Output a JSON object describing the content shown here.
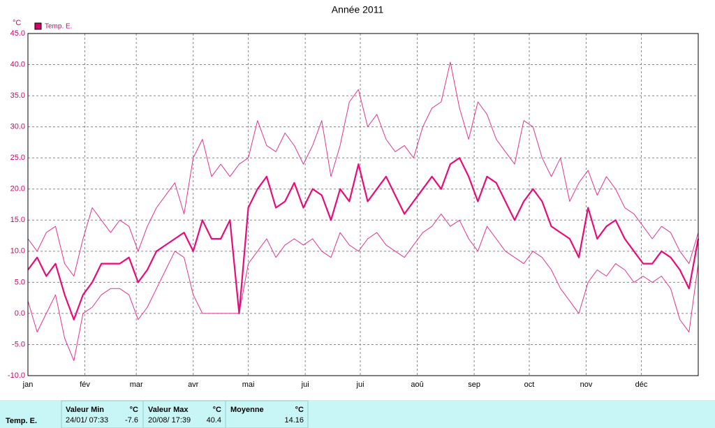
{
  "chart_data": {
    "type": "line",
    "title": "Année 2011",
    "y_unit": "°C",
    "legend": "Temp. E.",
    "legend_color": "#d4006a",
    "grid": true,
    "x": [
      0,
      5,
      10,
      15,
      20,
      25,
      30,
      35,
      40,
      45,
      50,
      55,
      60,
      65,
      70,
      75,
      80,
      85,
      90,
      95,
      100,
      105,
      110,
      115,
      120,
      125,
      130,
      135,
      140,
      145,
      150,
      155,
      160,
      165,
      170,
      175,
      180,
      185,
      190,
      195,
      200,
      205,
      210,
      215,
      220,
      225,
      230,
      235,
      240,
      245,
      250,
      255,
      260,
      265,
      270,
      275,
      280,
      285,
      290,
      295,
      300,
      305,
      310,
      315,
      320,
      325,
      330,
      335,
      340,
      345,
      350,
      355,
      360,
      365
    ],
    "series": [
      {
        "name": "Temp. E.",
        "color": "#ea0a78",
        "width": 2.2,
        "values": [
          7,
          9,
          6,
          8,
          3,
          -1,
          3,
          5,
          8,
          8,
          8,
          9,
          5,
          7,
          10,
          11,
          12,
          13,
          10,
          15,
          12,
          12,
          15,
          0,
          17,
          20,
          22,
          17,
          18,
          21,
          17,
          20,
          19,
          15,
          20,
          18,
          24,
          18,
          20,
          22,
          19,
          16,
          18,
          20,
          22,
          20,
          24,
          25,
          22,
          18,
          22,
          21,
          18,
          15,
          18,
          20,
          18,
          14,
          13,
          12,
          9,
          17,
          12,
          14,
          15,
          12,
          10,
          8,
          8,
          10,
          9,
          7,
          4,
          12
        ]
      },
      {
        "color": "#e2358f",
        "width": 1,
        "values": [
          12,
          10,
          13,
          14,
          8,
          6,
          12,
          17,
          15,
          13,
          15,
          14,
          10,
          14,
          17,
          19,
          21,
          16,
          25,
          28,
          22,
          24,
          22,
          24,
          25,
          31,
          27,
          26,
          29,
          27,
          24,
          27,
          31,
          22,
          27,
          34,
          36,
          30,
          32,
          28,
          26,
          27,
          25,
          30,
          33,
          34,
          40.4,
          33,
          28,
          34,
          32,
          28,
          26,
          24,
          31,
          30,
          25,
          22,
          25,
          18,
          21,
          23,
          19,
          22,
          20,
          17,
          16,
          14,
          12,
          14,
          13,
          10,
          8,
          13
        ]
      },
      {
        "color": "#e2358f",
        "width": 1,
        "values": [
          2,
          -3,
          0,
          3,
          -4,
          -7.6,
          0,
          1,
          3,
          4,
          4,
          3,
          -1,
          1,
          4,
          7,
          10,
          9,
          3,
          0,
          0,
          0,
          0,
          0,
          8,
          10,
          12,
          9,
          11,
          12,
          11,
          12,
          10,
          9,
          13,
          11,
          10,
          12,
          13,
          11,
          10,
          9,
          11,
          13,
          14,
          16,
          14,
          15,
          12,
          10,
          14,
          12,
          10,
          9,
          8,
          10,
          9,
          7,
          4,
          2,
          0,
          5,
          7,
          6,
          8,
          7,
          5,
          6,
          5,
          6,
          4,
          -1,
          -3,
          8
        ]
      }
    ],
    "xlim": [
      0,
      365
    ],
    "xticks": [
      {
        "value": 0,
        "label": "jan"
      },
      {
        "value": 31,
        "label": "fév"
      },
      {
        "value": 59,
        "label": "mar"
      },
      {
        "value": 90,
        "label": "avr"
      },
      {
        "value": 120,
        "label": "mai"
      },
      {
        "value": 151,
        "label": "jui"
      },
      {
        "value": 181,
        "label": "jui"
      },
      {
        "value": 212,
        "label": "aoû"
      },
      {
        "value": 243,
        "label": "sep"
      },
      {
        "value": 273,
        "label": "oct"
      },
      {
        "value": 304,
        "label": "nov"
      },
      {
        "value": 334,
        "label": "déc"
      }
    ],
    "ylim": [
      -10,
      45
    ],
    "yticks": [
      {
        "value": -10,
        "label": "-10.0"
      },
      {
        "value": -5,
        "label": "-5.0"
      },
      {
        "value": 0,
        "label": "0.0"
      },
      {
        "value": 5,
        "label": "5.0"
      },
      {
        "value": 10,
        "label": "10.0"
      },
      {
        "value": 15,
        "label": "15.0"
      },
      {
        "value": 20,
        "label": "20.0"
      },
      {
        "value": 25,
        "label": "25.0"
      },
      {
        "value": 30,
        "label": "30.0"
      },
      {
        "value": 35,
        "label": "35.0"
      },
      {
        "value": 40,
        "label": "40.0"
      },
      {
        "value": 45,
        "label": "45.0"
      }
    ]
  },
  "summary": {
    "row_label": "Temp. E.",
    "min": {
      "title": "Valeur Min",
      "unit": "°C",
      "date": "24/01/ 07:33",
      "value": "-7.6"
    },
    "max": {
      "title": "Valeur Max",
      "unit": "°C",
      "date": "20/08/ 17:39",
      "value": "40.4"
    },
    "mean": {
      "title": "Moyenne",
      "unit": "°C",
      "value": "14.16"
    }
  }
}
